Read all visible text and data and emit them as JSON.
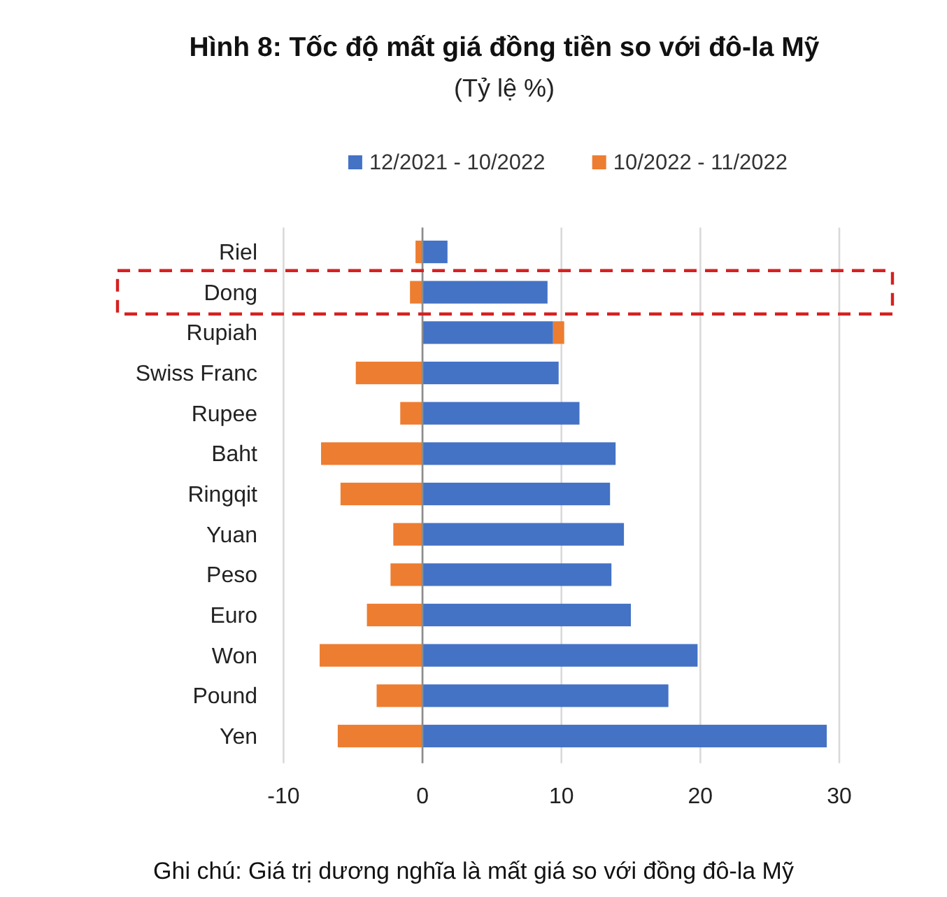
{
  "chart_data": {
    "type": "bar",
    "orientation": "horizontal",
    "stacked": true,
    "title": "Hình 8: Tốc độ mất giá đồng tiền so với đô-la Mỹ",
    "subtitle": "(Tỷ lệ %)",
    "categories": [
      "Riel",
      "Dong",
      "Rupiah",
      "Swiss Franc",
      "Rupee",
      "Baht",
      "Ringqit",
      "Yuan",
      "Peso",
      "Euro",
      "Won",
      "Pound",
      "Yen"
    ],
    "series": [
      {
        "name": "12/2021 - 10/2022",
        "color": "#4472c4",
        "values": [
          1.8,
          9.0,
          9.4,
          9.8,
          11.3,
          13.9,
          13.5,
          14.5,
          13.6,
          15.0,
          19.8,
          17.7,
          29.1
        ]
      },
      {
        "name": "10/2022 - 11/2022",
        "color": "#ed7d31",
        "values": [
          -0.5,
          -0.9,
          0.8,
          -4.8,
          -1.6,
          -7.3,
          -5.9,
          -2.1,
          -2.3,
          -4.0,
          -7.4,
          -3.3,
          -6.1
        ]
      }
    ],
    "xlim": [
      -10,
      30
    ],
    "xticks": [
      -10,
      0,
      10,
      20,
      30
    ],
    "grid": "x",
    "legend": "top",
    "annotations": [
      "Ghi chú: Giá trị dương nghĩa là mất giá so với đồng đô-la Mỹ"
    ]
  }
}
